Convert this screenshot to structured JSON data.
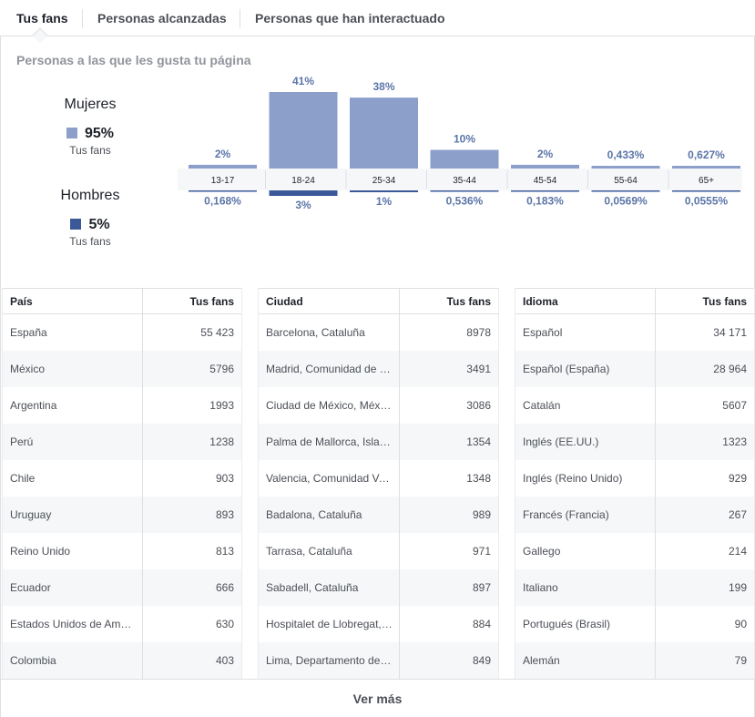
{
  "tabs": [
    {
      "label": "Tus fans",
      "active": true
    },
    {
      "label": "Personas alcanzadas",
      "active": false
    },
    {
      "label": "Personas que han interactuado",
      "active": false
    }
  ],
  "subtitle": "Personas a las que les gusta tu página",
  "women": {
    "title": "Mujeres",
    "pct": "95%",
    "sub": "Tus fans",
    "color": "#8c9fcb"
  },
  "men": {
    "title": "Hombres",
    "pct": "5%",
    "sub": "Tus fans",
    "color": "#3b5998"
  },
  "chart_data": {
    "type": "bar",
    "categories": [
      "13-17",
      "18-24",
      "25-34",
      "35-44",
      "45-54",
      "55-64",
      "65+"
    ],
    "series": [
      {
        "name": "Mujeres",
        "values": [
          2,
          41,
          38,
          10,
          2,
          0.433,
          0.627
        ],
        "labels": [
          "2%",
          "41%",
          "38%",
          "10%",
          "2%",
          "0,433%",
          "0,627%"
        ],
        "color": "#8c9fcb"
      },
      {
        "name": "Hombres",
        "values": [
          0.168,
          3,
          1,
          0.536,
          0.183,
          0.0569,
          0.0555
        ],
        "labels": [
          "0,168%",
          "3%",
          "1%",
          "0,536%",
          "0,183%",
          "0,0569%",
          "0,0555%"
        ],
        "color": "#3b5998"
      }
    ]
  },
  "tables": [
    {
      "headers": [
        "País",
        "Tus fans"
      ],
      "rows": [
        [
          "España",
          "55 423"
        ],
        [
          "México",
          "5796"
        ],
        [
          "Argentina",
          "1993"
        ],
        [
          "Perú",
          "1238"
        ],
        [
          "Chile",
          "903"
        ],
        [
          "Uruguay",
          "893"
        ],
        [
          "Reino Unido",
          "813"
        ],
        [
          "Ecuador",
          "666"
        ],
        [
          "Estados Unidos de América",
          "630"
        ],
        [
          "Colombia",
          "403"
        ]
      ]
    },
    {
      "headers": [
        "Ciudad",
        "Tus fans"
      ],
      "rows": [
        [
          "Barcelona, Cataluña",
          "8978"
        ],
        [
          "Madrid, Comunidad de Madrid",
          "3491"
        ],
        [
          "Ciudad de México, México",
          "3086"
        ],
        [
          "Palma de Mallorca, Islas Baleares",
          "1354"
        ],
        [
          "Valencia, Comunidad Valenciana",
          "1348"
        ],
        [
          "Badalona, Cataluña",
          "989"
        ],
        [
          "Tarrasa, Cataluña",
          "971"
        ],
        [
          "Sabadell, Cataluña",
          "897"
        ],
        [
          "Hospitalet de Llobregat, Cataluña",
          "884"
        ],
        [
          "Lima, Departamento de Lima",
          "849"
        ]
      ]
    },
    {
      "headers": [
        "Idioma",
        "Tus fans"
      ],
      "rows": [
        [
          "Español",
          "34 171"
        ],
        [
          "Español (España)",
          "28 964"
        ],
        [
          "Catalán",
          "5607"
        ],
        [
          "Inglés (EE.UU.)",
          "1323"
        ],
        [
          "Inglés (Reino Unido)",
          "929"
        ],
        [
          "Francés (Francia)",
          "267"
        ],
        [
          "Gallego",
          "214"
        ],
        [
          "Italiano",
          "199"
        ],
        [
          "Portugués (Brasil)",
          "90"
        ],
        [
          "Alemán",
          "79"
        ]
      ]
    }
  ],
  "footer": {
    "label": "Ver más"
  }
}
